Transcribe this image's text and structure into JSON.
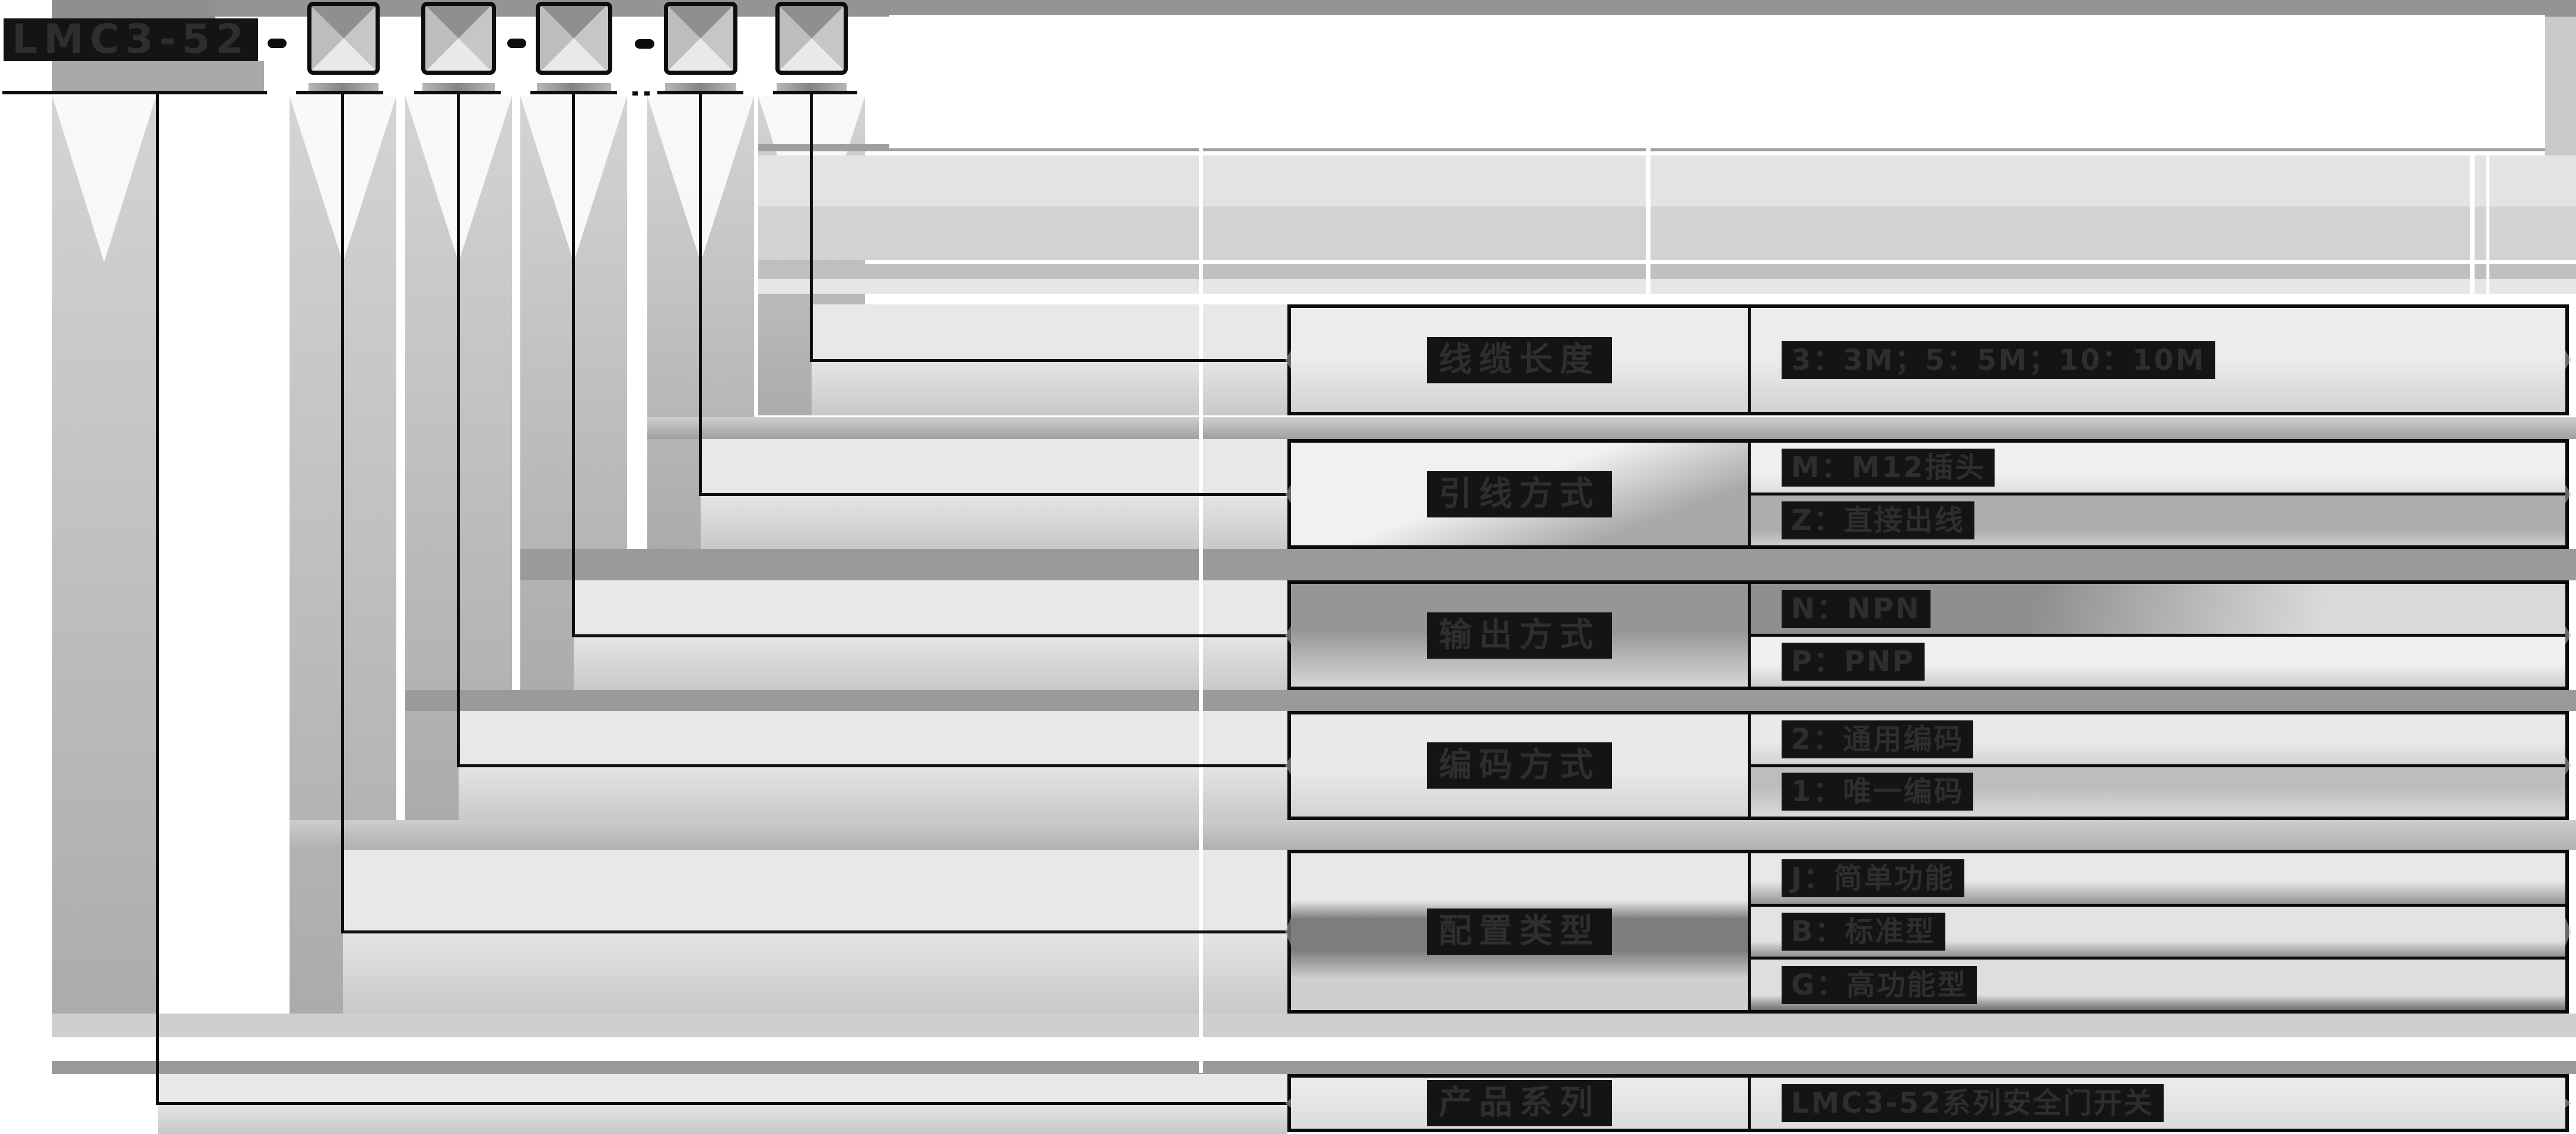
{
  "product_code": {
    "prefix": "LMC3-52",
    "pattern": "LMC3-52-□□-□-□□",
    "separators": [
      "-",
      "-",
      "-"
    ],
    "code_boxes": [
      "",
      "",
      "",
      "",
      ""
    ]
  },
  "spec_rows": [
    {
      "label": "线缆长度",
      "values": [
        "3：3M；5：5M；10：10M"
      ]
    },
    {
      "label": "引线方式",
      "values": [
        "M：M12插头",
        "Z：直接出线"
      ]
    },
    {
      "label": "输出方式",
      "values": [
        "N：NPN",
        "P：PNP"
      ]
    },
    {
      "label": "编码方式",
      "values": [
        "2：通用编码",
        "1：唯一编码"
      ]
    },
    {
      "label": "配置类型",
      "values": [
        "J：简单功能",
        "B：标准型",
        "G：高功能型"
      ]
    },
    {
      "label": "产品系列",
      "values": [
        "LMC3-52系列安全门开关"
      ]
    }
  ],
  "colors": {
    "diagram_line": "#0d0d0d",
    "text_block_bg": "#141414",
    "shadow_gray": "#9a9a9a",
    "panel_light": "#e8e8e8"
  }
}
